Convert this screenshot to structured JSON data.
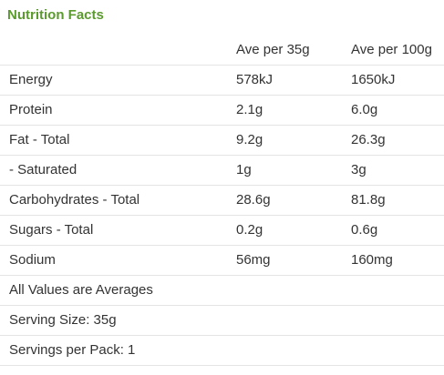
{
  "title": "Nutrition Facts",
  "columns": [
    "",
    "Ave per 35g",
    "Ave per 100g"
  ],
  "rows": [
    {
      "label": "Energy",
      "per_serving": "578kJ",
      "per_100g": "1650kJ"
    },
    {
      "label": "Protein",
      "per_serving": "2.1g",
      "per_100g": "6.0g"
    },
    {
      "label": "Fat - Total",
      "per_serving": "9.2g",
      "per_100g": "26.3g"
    },
    {
      "label": "- Saturated",
      "per_serving": "1g",
      "per_100g": "3g"
    },
    {
      "label": "Carbohydrates - Total",
      "per_serving": "28.6g",
      "per_100g": "81.8g"
    },
    {
      "label": "Sugars - Total",
      "per_serving": "0.2g",
      "per_100g": "0.6g"
    },
    {
      "label": "Sodium",
      "per_serving": "56mg",
      "per_100g": "160mg"
    }
  ],
  "notes": [
    "All Values are Averages",
    "Serving Size: 35g",
    "Servings per Pack: 1"
  ],
  "colors": {
    "title": "#5b9a2e",
    "text": "#333333",
    "divider": "#e4e4e4"
  }
}
